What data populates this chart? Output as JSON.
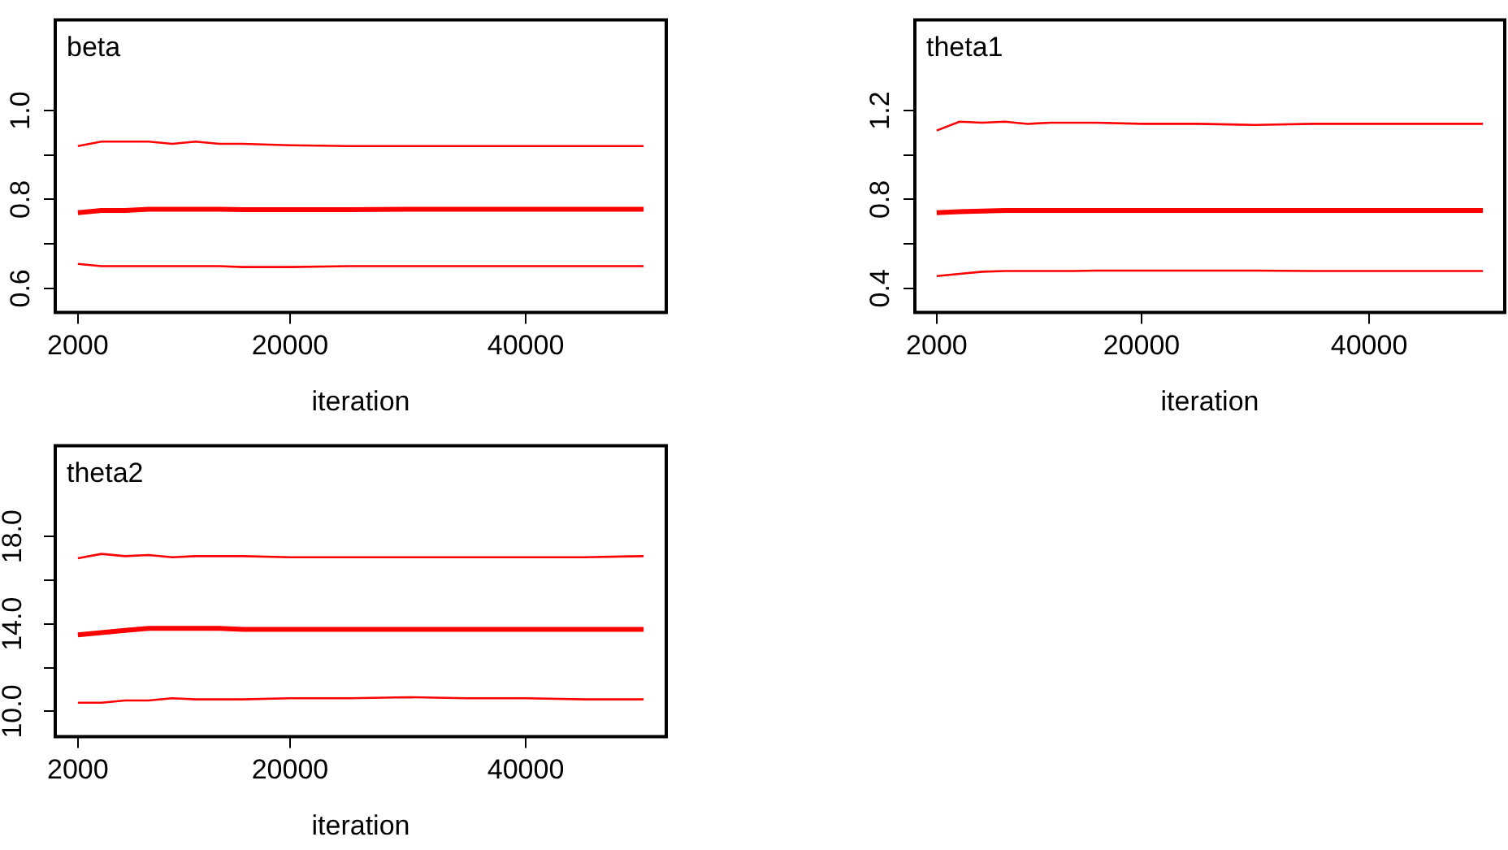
{
  "chart_data": [
    {
      "type": "line",
      "title": "beta",
      "xlabel": "iteration",
      "x": [
        2000,
        4000,
        6000,
        8000,
        10000,
        12000,
        14000,
        16000,
        20000,
        25000,
        30000,
        35000,
        40000,
        45000,
        50000
      ],
      "series": [
        {
          "color": "#ff0000",
          "values": [
            0.92,
            0.93,
            0.93,
            0.93,
            0.925,
            0.93,
            0.925,
            0.925,
            0.922,
            0.92,
            0.92,
            0.92,
            0.92,
            0.92,
            0.92
          ]
        },
        {
          "color": "#ff0000",
          "values": [
            0.77,
            0.775,
            0.775,
            0.778,
            0.778,
            0.778,
            0.778,
            0.777,
            0.777,
            0.777,
            0.778,
            0.778,
            0.778,
            0.778,
            0.778
          ]
        },
        {
          "color": "#ff0000",
          "values": [
            0.655,
            0.65,
            0.65,
            0.65,
            0.65,
            0.65,
            0.65,
            0.648,
            0.648,
            0.65,
            0.65,
            0.65,
            0.65,
            0.65,
            0.65
          ]
        }
      ],
      "xlim": [
        80,
        51920
      ],
      "xticks": [
        2000,
        20000,
        40000
      ],
      "ylim": [
        0.546,
        1.204
      ],
      "yticks": [
        {
          "value": 0.6,
          "label": "0.6"
        },
        {
          "value": 0.7,
          "label": null
        },
        {
          "value": 0.8,
          "label": "0.8"
        },
        {
          "value": 0.9,
          "label": null
        },
        {
          "value": 1.0,
          "label": "1.0"
        }
      ]
    },
    {
      "type": "line",
      "title": "theta1",
      "xlabel": "iteration",
      "x": [
        2000,
        4000,
        6000,
        8000,
        10000,
        12000,
        14000,
        16000,
        20000,
        25000,
        30000,
        35000,
        40000,
        45000,
        50000
      ],
      "series": [
        {
          "color": "#ff0000",
          "values": [
            1.11,
            1.15,
            1.145,
            1.15,
            1.14,
            1.145,
            1.145,
            1.145,
            1.14,
            1.14,
            1.135,
            1.14,
            1.14,
            1.14,
            1.14
          ]
        },
        {
          "color": "#ff0000",
          "values": [
            0.74,
            0.745,
            0.748,
            0.75,
            0.75,
            0.75,
            0.75,
            0.75,
            0.75,
            0.75,
            0.75,
            0.75,
            0.75,
            0.75,
            0.75
          ]
        },
        {
          "color": "#ff0000",
          "values": [
            0.455,
            0.465,
            0.475,
            0.478,
            0.478,
            0.478,
            0.478,
            0.48,
            0.48,
            0.48,
            0.48,
            0.478,
            0.478,
            0.478,
            0.478
          ]
        }
      ],
      "xlim": [
        80,
        51920
      ],
      "xticks": [
        2000,
        20000,
        40000
      ],
      "ylim": [
        0.292,
        1.608
      ],
      "yticks": [
        {
          "value": 0.4,
          "label": "0.4"
        },
        {
          "value": 0.6,
          "label": null
        },
        {
          "value": 0.8,
          "label": "0.8"
        },
        {
          "value": 1.0,
          "label": null
        },
        {
          "value": 1.2,
          "label": "1.2"
        }
      ]
    },
    {
      "type": "line",
      "title": "theta2",
      "xlabel": "iteration",
      "x": [
        2000,
        4000,
        6000,
        8000,
        10000,
        12000,
        14000,
        16000,
        20000,
        25000,
        30000,
        35000,
        40000,
        45000,
        50000
      ],
      "series": [
        {
          "color": "#ff0000",
          "values": [
            17.0,
            17.2,
            17.1,
            17.15,
            17.05,
            17.1,
            17.1,
            17.1,
            17.05,
            17.05,
            17.05,
            17.05,
            17.05,
            17.05,
            17.1
          ]
        },
        {
          "color": "#ff0000",
          "values": [
            13.5,
            13.6,
            13.7,
            13.8,
            13.8,
            13.8,
            13.8,
            13.75,
            13.75,
            13.75,
            13.75,
            13.75,
            13.75,
            13.75,
            13.75
          ]
        },
        {
          "color": "#ff0000",
          "values": [
            10.4,
            10.4,
            10.5,
            10.5,
            10.6,
            10.55,
            10.55,
            10.55,
            10.6,
            10.6,
            10.65,
            10.6,
            10.6,
            10.55,
            10.55
          ]
        }
      ],
      "xlim": [
        80,
        51920
      ],
      "xticks": [
        2000,
        20000,
        40000
      ],
      "ylim": [
        8.85,
        22.15
      ],
      "yticks": [
        {
          "value": 10,
          "label": "10.0"
        },
        {
          "value": 12,
          "label": null
        },
        {
          "value": 14,
          "label": "14.0"
        },
        {
          "value": 16,
          "label": null
        },
        {
          "value": 18,
          "label": "18.0"
        }
      ]
    }
  ]
}
